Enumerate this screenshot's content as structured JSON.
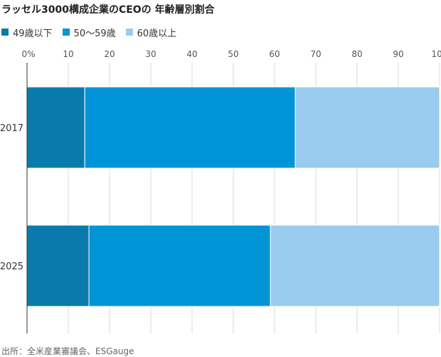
{
  "title": "ラッセル3000構成企業のCEOの 年齢層別割合",
  "source": "出所：全米産業審議会、ESGauge",
  "colors": {
    "under49": "#0a7aad",
    "age50to59": "#0195d8",
    "over60": "#99ccee"
  },
  "chart_data": {
    "type": "bar",
    "orientation": "horizontal",
    "stacked": true,
    "categories": [
      "2017",
      "2025"
    ],
    "series": [
      {
        "name": "49歳以下",
        "values": [
          14,
          15
        ]
      },
      {
        "name": "50〜59歳",
        "values": [
          51,
          44
        ]
      },
      {
        "name": "60歳以上",
        "values": [
          35,
          41
        ]
      }
    ],
    "xlim": [
      0,
      100
    ],
    "xticks": [
      "0%",
      "10",
      "20",
      "30",
      "40",
      "50",
      "60",
      "70",
      "80",
      "90",
      "100"
    ],
    "grid": true,
    "legend_position": "top-left"
  }
}
